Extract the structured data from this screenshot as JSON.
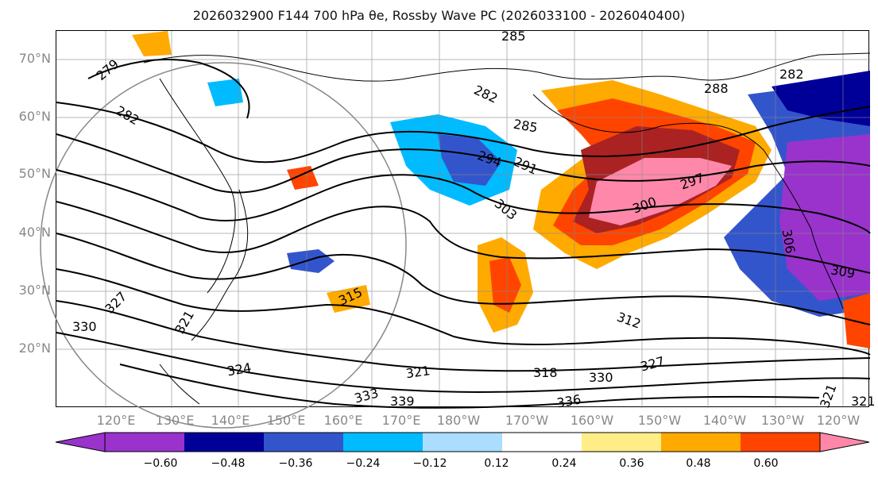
{
  "title": "2026032900 F144 700 hPa θe, Rossby Wave PC (2026033100 - 2026040400)",
  "lat_labels": [
    "70°N",
    "60°N",
    "50°N",
    "40°N",
    "30°N",
    "20°N"
  ],
  "lon_labels": [
    "120°E",
    "130°E",
    "140°E",
    "150°E",
    "160°E",
    "170°E",
    "180°W",
    "170°W",
    "160°W",
    "150°W",
    "140°W",
    "130°W",
    "120°W"
  ],
  "contour_labels": [
    "285",
    "279",
    "282",
    "282",
    "285",
    "288",
    "282",
    "291",
    "294",
    "297",
    "300",
    "303",
    "306",
    "309",
    "312",
    "315",
    "318",
    "321",
    "321",
    "324",
    "327",
    "330",
    "333",
    "336",
    "339",
    "330",
    "321",
    "327",
    "321"
  ],
  "colorbar": {
    "tick_labels": [
      "−0.60",
      "−0.48",
      "−0.36",
      "−0.24",
      "−0.12",
      "0.12",
      "0.24",
      "0.36",
      "0.48",
      "0.60"
    ],
    "colors": [
      "#9933cc",
      "#000099",
      "#3355cc",
      "#00bbff",
      "#aaddff",
      "#ffffff",
      "#ffee88",
      "#ffaa00",
      "#ff4400",
      "#aa2222",
      "#ff88aa"
    ],
    "under_color": "#9933cc",
    "over_color": "#ff88aa"
  }
}
